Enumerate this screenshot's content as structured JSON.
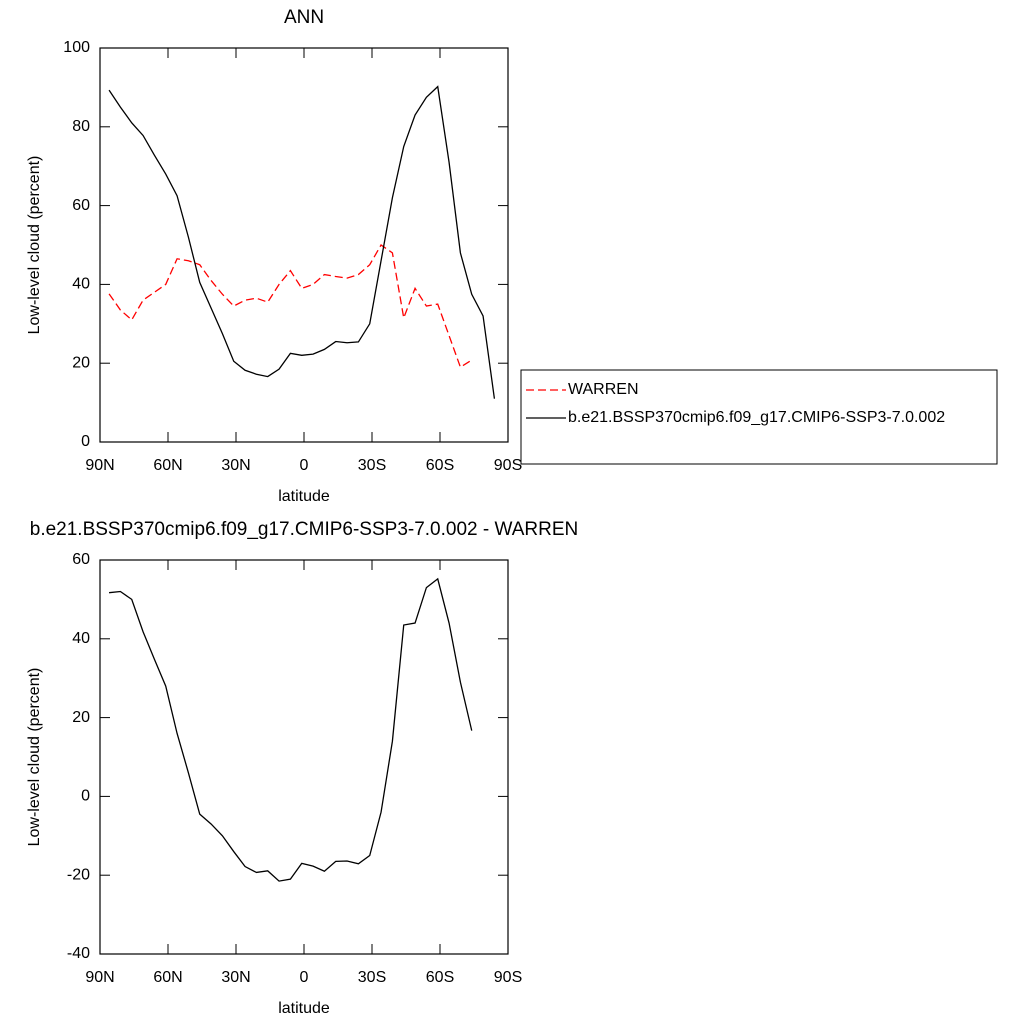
{
  "chart_data": [
    {
      "type": "line",
      "title": "ANN",
      "xlabel": "latitude",
      "ylabel": "Low-level cloud (percent)",
      "xlim": [
        90,
        -90
      ],
      "xticks": [
        {
          "value": 90,
          "label": "90N"
        },
        {
          "value": 60,
          "label": "60N"
        },
        {
          "value": 30,
          "label": "30N"
        },
        0,
        {
          "value": -30,
          "label": "30S"
        },
        {
          "value": -60,
          "label": "60S"
        },
        {
          "value": -90,
          "label": "90S"
        }
      ],
      "ylim": [
        0,
        100
      ],
      "yticks": [
        0,
        20,
        40,
        60,
        80,
        100
      ],
      "legend": "right",
      "x": [
        86,
        81,
        76,
        71,
        66,
        61,
        56,
        51,
        46,
        41,
        36,
        31,
        26,
        21,
        16,
        11,
        6,
        1,
        -4,
        -9,
        -14,
        -19,
        -24,
        -29,
        -34,
        -39,
        -44,
        -49,
        -54,
        -59,
        -64,
        -69,
        -74,
        -79,
        -84
      ],
      "series": [
        {
          "name": "WARREN",
          "color": "#ff0000",
          "dashed": true,
          "values": [
            37.6,
            33.5,
            31,
            36,
            38,
            40,
            46.5,
            46,
            45,
            41,
            37.5,
            34.5,
            36,
            36.5,
            35.5,
            40,
            43.5,
            39,
            40,
            42.5,
            42,
            41.6,
            42.5,
            45,
            50,
            48,
            31.5,
            39,
            34.5,
            35,
            27,
            19,
            20.8,
            null,
            null
          ]
        },
        {
          "name": "b.e21.BSSP370cmip6.f09_g17.CMIP6-SSP3-7.0.002",
          "color": "#000000",
          "dashed": false,
          "values": [
            89.3,
            85,
            81,
            77.8,
            72.8,
            68,
            62.5,
            52,
            40.5,
            34,
            27.5,
            20.5,
            18.2,
            17.2,
            16.6,
            18.5,
            22.5,
            22,
            22.3,
            23.5,
            25.5,
            25.2,
            25.4,
            30,
            46,
            62,
            75,
            83,
            87.5,
            90.2,
            71,
            48,
            37.5,
            32,
            11
          ]
        }
      ]
    },
    {
      "type": "line",
      "title": "b.e21.BSSP370cmip6.f09_g17.CMIP6-SSP3-7.0.002 - WARREN",
      "xlabel": "latitude",
      "ylabel": "Low-level cloud (percent)",
      "xlim": [
        90,
        -90
      ],
      "xticks": [
        {
          "value": 90,
          "label": "90N"
        },
        {
          "value": 60,
          "label": "60N"
        },
        {
          "value": 30,
          "label": "30N"
        },
        0,
        {
          "value": -30,
          "label": "30S"
        },
        {
          "value": -60,
          "label": "60S"
        },
        {
          "value": -90,
          "label": "90S"
        }
      ],
      "ylim": [
        -40,
        60
      ],
      "yticks": [
        -40,
        -20,
        0,
        20,
        40,
        60
      ],
      "x": [
        86,
        81,
        76,
        71,
        66,
        61,
        56,
        51,
        46,
        41,
        36,
        31,
        26,
        21,
        16,
        11,
        6,
        1,
        -4,
        -9,
        -14,
        -19,
        -24,
        -29,
        -34,
        -39,
        -44,
        -49,
        -54,
        -59,
        -64,
        -69,
        -74,
        -79,
        -84
      ],
      "series": [
        {
          "color": "#000000",
          "dashed": false,
          "values": [
            51.7,
            52,
            50,
            41.8,
            34.8,
            28,
            16,
            6,
            -4.5,
            -7,
            -10,
            -14,
            -17.8,
            -19.3,
            -18.9,
            -21.5,
            -21,
            -17,
            -17.7,
            -19,
            -16.5,
            -16.4,
            -17.1,
            -15,
            -4,
            14,
            43.5,
            44,
            53,
            55.2,
            44,
            29,
            16.7,
            null,
            null
          ]
        }
      ]
    }
  ]
}
